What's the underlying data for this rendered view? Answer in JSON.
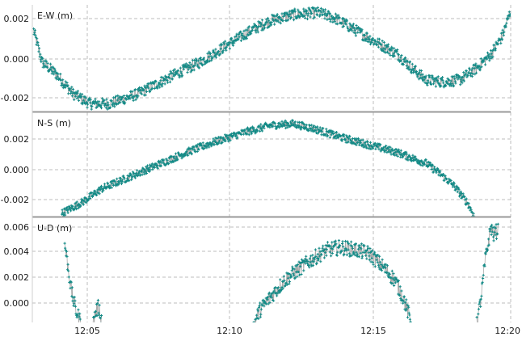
{
  "chart_data": {
    "type": "scatter",
    "x_axis": {
      "ticks": [
        "12:05",
        "12:10",
        "12:15",
        "12:20"
      ],
      "range_minutes": [
        3.1,
        20.0
      ],
      "grid": true
    },
    "style": {
      "point_color": "#138a86",
      "line_color": "#a9a9a9",
      "grid_color": "#bcbcbc",
      "separator_color": "#9a9a9a"
    },
    "panels": [
      {
        "label": "E-W (m)",
        "ticks": [
          "0.002",
          "0.000",
          "-0.002"
        ],
        "ylim": [
          -0.0027,
          0.0026
        ],
        "shape": [
          [
            3.1,
            0.0014
          ],
          [
            3.4,
            -0.0002
          ],
          [
            3.9,
            -0.0008
          ],
          [
            4.5,
            -0.0018
          ],
          [
            5.1,
            -0.0023
          ],
          [
            5.8,
            -0.0023
          ],
          [
            6.8,
            -0.0018
          ],
          [
            8.0,
            -0.0009
          ],
          [
            9.0,
            -0.0002
          ],
          [
            10.0,
            0.0007
          ],
          [
            10.8,
            0.0014
          ],
          [
            11.5,
            0.0019
          ],
          [
            12.3,
            0.0022
          ],
          [
            13.2,
            0.0023
          ],
          [
            13.8,
            0.002
          ],
          [
            14.4,
            0.0015
          ],
          [
            15.0,
            0.001
          ],
          [
            15.5,
            0.0006
          ],
          [
            16.0,
            0.0002
          ],
          [
            16.5,
            -0.0005
          ],
          [
            17.0,
            -0.0011
          ],
          [
            17.6,
            -0.0012
          ],
          [
            18.2,
            -0.0011
          ],
          [
            18.8,
            -0.0005
          ],
          [
            19.3,
            0.0002
          ],
          [
            19.7,
            0.0011
          ],
          [
            20.0,
            0.0024
          ]
        ],
        "noise": 0.00028
      },
      {
        "label": "N-S (m)",
        "ticks": [
          "0.002",
          "0.000",
          "-0.002"
        ],
        "ylim": [
          -0.0031,
          0.0037
        ],
        "shape": [
          [
            4.1,
            -0.0029
          ],
          [
            4.8,
            -0.0022
          ],
          [
            5.5,
            -0.0013
          ],
          [
            6.5,
            -0.0005
          ],
          [
            7.5,
            0.0003
          ],
          [
            8.5,
            0.0011
          ],
          [
            9.5,
            0.0018
          ],
          [
            10.5,
            0.0024
          ],
          [
            11.5,
            0.0029
          ],
          [
            12.3,
            0.003
          ],
          [
            13.0,
            0.0027
          ],
          [
            14.0,
            0.0021
          ],
          [
            15.0,
            0.0016
          ],
          [
            16.0,
            0.0011
          ],
          [
            17.0,
            0.0004
          ],
          [
            17.5,
            -0.0003
          ],
          [
            18.0,
            -0.0011
          ],
          [
            18.5,
            -0.0023
          ],
          [
            18.7,
            -0.0031
          ]
        ],
        "noise": 0.00025
      },
      {
        "label": "U-D (m)",
        "ticks": [
          "0.006",
          "0.004",
          "0.002",
          "0.000"
        ],
        "ylim": [
          -0.0017,
          0.0066
        ],
        "segments": [
          [
            [
              4.2,
              0.0047
            ],
            [
              4.45,
              0.0008
            ],
            [
              4.6,
              -0.0006
            ],
            [
              4.8,
              -0.0017
            ]
          ],
          [
            [
              5.2,
              -0.0017
            ],
            [
              5.3,
              -0.0007
            ],
            [
              5.4,
              -0.0003
            ],
            [
              5.5,
              -0.0012
            ]
          ],
          [
            [
              10.9,
              -0.0017
            ],
            [
              11.1,
              -0.0006
            ],
            [
              11.5,
              0.0005
            ],
            [
              12.0,
              0.0018
            ],
            [
              12.5,
              0.0027
            ],
            [
              13.0,
              0.0035
            ],
            [
              13.5,
              0.0042
            ],
            [
              14.0,
              0.0044
            ],
            [
              14.5,
              0.0042
            ],
            [
              15.0,
              0.0039
            ],
            [
              15.5,
              0.0028
            ],
            [
              15.9,
              0.0018
            ],
            [
              16.2,
              0.0004
            ],
            [
              16.5,
              -0.0017
            ]
          ],
          [
            [
              18.8,
              -0.0017
            ],
            [
              18.95,
              0.0004
            ],
            [
              19.1,
              0.0034
            ],
            [
              19.3,
              0.006
            ],
            [
              19.4,
              0.0054
            ],
            [
              19.55,
              0.0058
            ]
          ]
        ],
        "noise": 0.0006
      }
    ]
  }
}
